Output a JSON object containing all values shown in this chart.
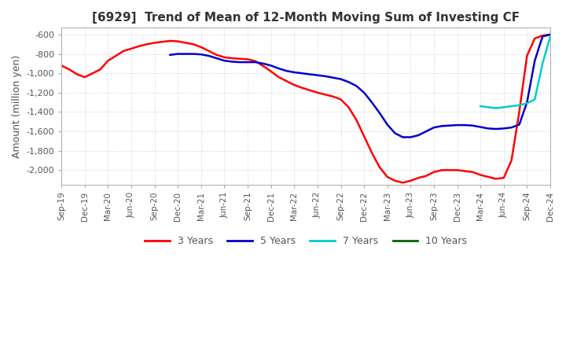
{
  "title": "[6929]  Trend of Mean of 12-Month Moving Sum of Investing CF",
  "ylabel": "Amount (million yen)",
  "ylim": [
    -2150,
    -530
  ],
  "yticks": [
    -2000,
    -1800,
    -1600,
    -1400,
    -1200,
    -1000,
    -800,
    -600
  ],
  "background_color": "#ffffff",
  "grid_color": "#bbbbbb",
  "series": {
    "3 Years": {
      "color": "#ff0000",
      "x": [
        0,
        1,
        2,
        3,
        4,
        5,
        6,
        7,
        8,
        9,
        10,
        11,
        12,
        13,
        14,
        15,
        16,
        17,
        18,
        19,
        20,
        21,
        22,
        23,
        24,
        25,
        26,
        27,
        28,
        29,
        30,
        31,
        32,
        33,
        34,
        35,
        36,
        37,
        38,
        39,
        40,
        41,
        42,
        43,
        44,
        45,
        46,
        47,
        48,
        49,
        50,
        51,
        52,
        53,
        54,
        55,
        56,
        57,
        58,
        59,
        60,
        61,
        62,
        63
      ],
      "y": [
        -920,
        -960,
        -1010,
        -1040,
        -1000,
        -960,
        -870,
        -820,
        -770,
        -745,
        -720,
        -700,
        -685,
        -675,
        -665,
        -670,
        -685,
        -700,
        -730,
        -770,
        -810,
        -835,
        -845,
        -850,
        -855,
        -875,
        -925,
        -980,
        -1040,
        -1080,
        -1120,
        -1150,
        -1175,
        -1200,
        -1220,
        -1240,
        -1270,
        -1350,
        -1480,
        -1650,
        -1820,
        -1970,
        -2070,
        -2110,
        -2130,
        -2110,
        -2080,
        -2060,
        -2020,
        -2000,
        -2000,
        -2000,
        -2010,
        -2020,
        -2050,
        -2070,
        -2090,
        -2080,
        -1900,
        -1400,
        -820,
        -640,
        -610,
        -600
      ]
    },
    "5 Years": {
      "color": "#0000cc",
      "x": [
        14,
        15,
        16,
        17,
        18,
        19,
        20,
        21,
        22,
        23,
        24,
        25,
        26,
        27,
        28,
        29,
        30,
        31,
        32,
        33,
        34,
        35,
        36,
        37,
        38,
        39,
        40,
        41,
        42,
        43,
        44,
        45,
        46,
        47,
        48,
        49,
        50,
        51,
        52,
        53,
        54,
        55,
        56,
        57,
        58,
        59,
        60,
        61,
        62,
        63
      ],
      "y": [
        -810,
        -800,
        -800,
        -800,
        -805,
        -820,
        -845,
        -870,
        -880,
        -885,
        -885,
        -885,
        -900,
        -920,
        -950,
        -975,
        -990,
        -1000,
        -1010,
        -1020,
        -1030,
        -1045,
        -1060,
        -1090,
        -1130,
        -1200,
        -1300,
        -1410,
        -1530,
        -1620,
        -1660,
        -1660,
        -1640,
        -1600,
        -1560,
        -1545,
        -1540,
        -1535,
        -1535,
        -1540,
        -1555,
        -1570,
        -1575,
        -1570,
        -1560,
        -1530,
        -1300,
        -870,
        -620,
        -600
      ]
    },
    "7 Years": {
      "color": "#00cccc",
      "x": [
        54,
        55,
        56,
        57,
        58,
        59,
        60,
        61,
        62,
        63
      ],
      "y": [
        -1340,
        -1350,
        -1360,
        -1350,
        -1340,
        -1330,
        -1310,
        -1270,
        -900,
        -620
      ]
    },
    "10 Years": {
      "color": "#006600",
      "x": [],
      "y": []
    }
  },
  "xtick_positions": [
    0,
    3,
    6,
    9,
    12,
    15,
    18,
    21,
    24,
    27,
    30,
    33,
    36,
    39,
    42,
    45,
    48,
    51,
    54,
    57,
    60,
    63
  ],
  "xtick_labels": [
    "Sep-19",
    "Dec-19",
    "Mar-20",
    "Jun-20",
    "Sep-20",
    "Dec-20",
    "Mar-21",
    "Jun-21",
    "Sep-21",
    "Dec-21",
    "Mar-22",
    "Jun-22",
    "Sep-22",
    "Dec-22",
    "Mar-23",
    "Jun-23",
    "Sep-23",
    "Dec-23",
    "Mar-24",
    "Jun-24",
    "Sep-24",
    "Dec-24"
  ],
  "legend_labels": [
    "3 Years",
    "5 Years",
    "7 Years",
    "10 Years"
  ],
  "legend_colors": [
    "#ff0000",
    "#0000cc",
    "#00cccc",
    "#006600"
  ]
}
